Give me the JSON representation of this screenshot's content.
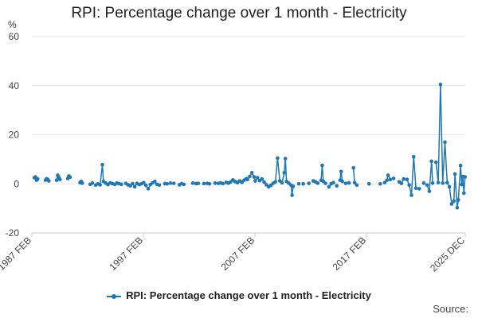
{
  "title": "RPI: Percentage change over 1 month - Electricity",
  "source_label": "Source:",
  "colors": {
    "series": "#1f77b4",
    "grid": "#e6e6e6",
    "axis": "#cccccc"
  },
  "chart_data": {
    "type": "line",
    "title": "RPI: Percentage change over 1 month - Electricity",
    "ylabel": "%",
    "xlabel": "",
    "ylim": [
      -20,
      60
    ],
    "yticks": [
      -20,
      0,
      20,
      40,
      60
    ],
    "xlim": [
      1987.08,
      2025.92
    ],
    "xticks": [
      {
        "label": "1987 FEB",
        "t": 1987.08
      },
      {
        "label": "1997 FEB",
        "t": 1997.08
      },
      {
        "label": "2007 FEB",
        "t": 2007.08
      },
      {
        "label": "2017 FEB",
        "t": 2017.08
      },
      {
        "label": "2025 DEC",
        "t": 2025.92
      }
    ],
    "grid": true,
    "legend_position": "bottom",
    "series": [
      {
        "name": "RPI: Percentage change over 1 month - Electricity",
        "points": [
          [
            1987.3,
            2.5
          ],
          [
            1987.4,
            2.8
          ],
          [
            1987.5,
            1.5
          ],
          [
            1987.6,
            2.0
          ],
          [
            1988.3,
            1.5
          ],
          [
            1988.4,
            2.1
          ],
          [
            1988.5,
            1.8
          ],
          [
            1988.6,
            1.2
          ],
          [
            1989.3,
            1.5
          ],
          [
            1989.4,
            3.5
          ],
          [
            1989.5,
            2.6
          ],
          [
            1989.6,
            1.8
          ],
          [
            1990.3,
            2.2
          ],
          [
            1990.4,
            3.2
          ],
          [
            1990.5,
            2.7
          ],
          [
            1991.4,
            0.5
          ],
          [
            1991.5,
            1.0
          ],
          [
            1991.6,
            0.3
          ],
          [
            1992.3,
            -0.2
          ],
          [
            1992.5,
            0.3
          ],
          [
            1992.8,
            -0.5
          ],
          [
            1993.0,
            0.0
          ],
          [
            1993.2,
            -0.4
          ],
          [
            1993.4,
            7.8
          ],
          [
            1993.5,
            1.0
          ],
          [
            1993.7,
            0.3
          ],
          [
            1993.9,
            -0.3
          ],
          [
            1994.1,
            0.4
          ],
          [
            1994.3,
            0.1
          ],
          [
            1994.5,
            -0.2
          ],
          [
            1994.7,
            0.3
          ],
          [
            1994.9,
            0.1
          ],
          [
            1995.1,
            -0.2
          ],
          [
            1995.5,
            0.2
          ],
          [
            1995.7,
            -0.4
          ],
          [
            1995.9,
            -0.8
          ],
          [
            1996.1,
            0.1
          ],
          [
            1996.3,
            -1.2
          ],
          [
            1996.5,
            0.2
          ],
          [
            1996.7,
            -0.3
          ],
          [
            1996.9,
            0.0
          ],
          [
            1997.1,
            0.5
          ],
          [
            1997.3,
            -0.6
          ],
          [
            1997.5,
            -2.0
          ],
          [
            1997.7,
            -0.3
          ],
          [
            1997.9,
            0.4
          ],
          [
            1998.1,
            1.0
          ],
          [
            1998.3,
            -0.2
          ],
          [
            1998.5,
            -0.5
          ],
          [
            1999.0,
            0.1
          ],
          [
            1999.2,
            0.0
          ],
          [
            1999.5,
            0.3
          ],
          [
            1999.8,
            0.2
          ],
          [
            2000.3,
            -0.4
          ],
          [
            2000.5,
            0.1
          ],
          [
            2000.7,
            -0.2
          ],
          [
            2001.5,
            0.3
          ],
          [
            2001.8,
            0.1
          ],
          [
            2002.0,
            0.2
          ],
          [
            2002.5,
            0.1
          ],
          [
            2002.8,
            0.2
          ],
          [
            2003.0,
            0.0
          ],
          [
            2003.5,
            0.3
          ],
          [
            2003.8,
            0.2
          ],
          [
            2004.0,
            0.4
          ],
          [
            2004.2,
            0.1
          ],
          [
            2004.5,
            0.6
          ],
          [
            2004.7,
            0.3
          ],
          [
            2004.9,
            0.8
          ],
          [
            2005.1,
            1.6
          ],
          [
            2005.3,
            0.9
          ],
          [
            2005.5,
            0.5
          ],
          [
            2005.7,
            1.2
          ],
          [
            2005.9,
            0.6
          ],
          [
            2006.1,
            1.5
          ],
          [
            2006.3,
            2.1
          ],
          [
            2006.4,
            1.8
          ],
          [
            2006.6,
            3.0
          ],
          [
            2006.8,
            4.5
          ],
          [
            2007.0,
            2.8
          ],
          [
            2007.1,
            1.2
          ],
          [
            2007.3,
            2.5
          ],
          [
            2007.5,
            1.3
          ],
          [
            2007.7,
            2.0
          ],
          [
            2007.9,
            0.7
          ],
          [
            2008.1,
            -0.4
          ],
          [
            2008.3,
            -1.2
          ],
          [
            2008.5,
            -0.6
          ],
          [
            2008.7,
            0.2
          ],
          [
            2008.9,
            0.8
          ],
          [
            2009.1,
            10.5
          ],
          [
            2009.3,
            1.2
          ],
          [
            2009.5,
            0.4
          ],
          [
            2009.7,
            4.5
          ],
          [
            2009.8,
            10.3
          ],
          [
            2009.9,
            1.0
          ],
          [
            2010.1,
            0.3
          ],
          [
            2010.3,
            -0.5
          ],
          [
            2010.4,
            -4.6
          ],
          [
            2010.5,
            -1.0
          ],
          [
            2011.0,
            0.0
          ],
          [
            2011.4,
            0.0
          ],
          [
            2011.9,
            0.2
          ],
          [
            2012.3,
            1.2
          ],
          [
            2012.5,
            0.8
          ],
          [
            2012.7,
            0.3
          ],
          [
            2013.0,
            1.4
          ],
          [
            2013.1,
            7.5
          ],
          [
            2013.2,
            1.0
          ],
          [
            2013.4,
            0.2
          ],
          [
            2013.7,
            -1.2
          ],
          [
            2013.9,
            0.0
          ],
          [
            2014.1,
            0.5
          ],
          [
            2014.4,
            -0.8
          ],
          [
            2014.7,
            1.5
          ],
          [
            2014.8,
            5.0
          ],
          [
            2014.9,
            1.0
          ],
          [
            2015.2,
            0.2
          ],
          [
            2015.5,
            0.4
          ],
          [
            2015.9,
            6.5
          ],
          [
            2016.0,
            0.5
          ],
          [
            2016.2,
            -0.5
          ],
          [
            2017.3,
            0.0
          ],
          [
            2018.3,
            0.0
          ],
          [
            2018.7,
            0.5
          ],
          [
            2018.9,
            1.5
          ],
          [
            2019.0,
            3.5
          ],
          [
            2019.2,
            1.8
          ],
          [
            2019.5,
            2.2
          ],
          [
            2020.0,
            0.8
          ],
          [
            2020.2,
            0.2
          ],
          [
            2020.4,
            2.0
          ],
          [
            2020.7,
            1.8
          ],
          [
            2020.9,
            -0.5
          ],
          [
            2021.1,
            -4.6
          ],
          [
            2021.3,
            11.0
          ],
          [
            2021.5,
            -1.8
          ],
          [
            2021.8,
            -2.0
          ],
          [
            2022.2,
            0.3
          ],
          [
            2022.5,
            -0.5
          ],
          [
            2022.7,
            -3.0
          ],
          [
            2022.9,
            9.2
          ],
          [
            2023.0,
            0.3
          ],
          [
            2023.3,
            8.8
          ],
          [
            2023.5,
            0.5
          ],
          [
            2023.7,
            40.5
          ],
          [
            2023.9,
            0.3
          ],
          [
            2024.1,
            17.0
          ],
          [
            2024.3,
            0.5
          ],
          [
            2024.5,
            -1.2
          ],
          [
            2024.7,
            -8.2
          ],
          [
            2024.9,
            -7.0
          ],
          [
            2025.0,
            4.0
          ],
          [
            2025.2,
            -9.7
          ],
          [
            2025.3,
            -6.5
          ],
          [
            2025.5,
            7.5
          ],
          [
            2025.6,
            -0.3
          ],
          [
            2025.7,
            3.0
          ],
          [
            2025.8,
            -3.8
          ],
          [
            2025.9,
            2.8
          ]
        ]
      }
    ]
  }
}
